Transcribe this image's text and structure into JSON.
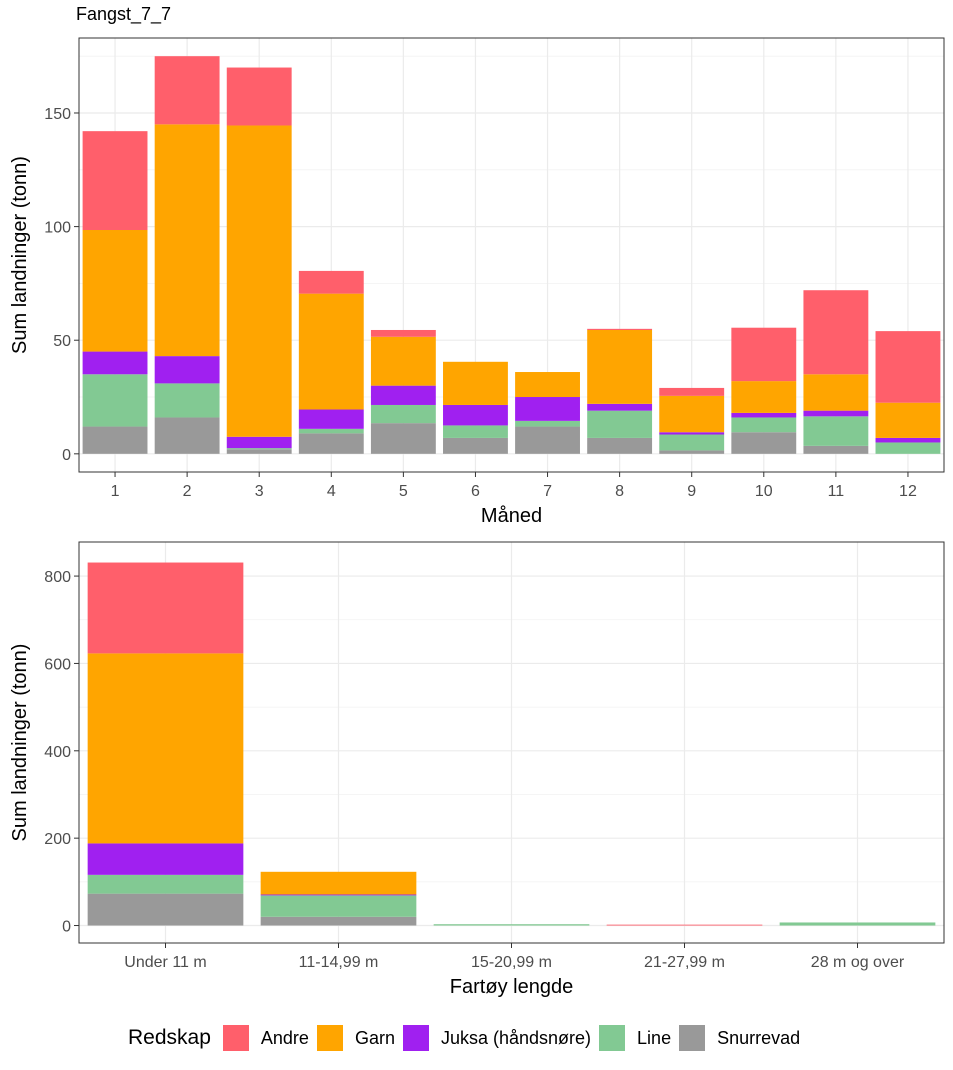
{
  "title": "Fangst_7_7",
  "legend": {
    "title": "Redskap",
    "items": [
      {
        "label": "Andre",
        "color": "#FF5F6B"
      },
      {
        "label": "Garn",
        "color": "#FFA500"
      },
      {
        "label": "Juksa (håndsnøre)",
        "color": "#A020F0"
      },
      {
        "label": "Line",
        "color": "#82C993"
      },
      {
        "label": "Snurrevad",
        "color": "#999999"
      }
    ]
  },
  "chart_data": [
    {
      "type": "bar",
      "stacked": true,
      "xlabel": "Måned",
      "ylabel": "Sum landninger (tonn)",
      "ylim": [
        -8,
        183
      ],
      "yticks": [
        0,
        50,
        100,
        150
      ],
      "grid": true,
      "legend_position": "bottom",
      "categories": [
        "1",
        "2",
        "3",
        "4",
        "5",
        "6",
        "7",
        "8",
        "9",
        "10",
        "11",
        "12"
      ],
      "series": [
        {
          "name": "Snurrevad",
          "color": "#999999",
          "values": [
            12,
            16,
            2,
            9,
            13.5,
            7,
            12,
            7,
            1.5,
            9.5,
            3.5,
            0
          ]
        },
        {
          "name": "Line",
          "color": "#82C993",
          "values": [
            23,
            15,
            0.5,
            2,
            8,
            5.5,
            2.5,
            12,
            7,
            6.5,
            13,
            5
          ]
        },
        {
          "name": "Juksa (håndsnøre)",
          "color": "#A020F0",
          "values": [
            10,
            12,
            5,
            8.5,
            8.5,
            9,
            10.5,
            3,
            1,
            2,
            2.5,
            2
          ]
        },
        {
          "name": "Garn",
          "color": "#FFA500",
          "values": [
            53.5,
            102,
            137,
            51,
            21.5,
            19,
            11,
            32.5,
            16,
            14,
            16,
            15.5
          ]
        },
        {
          "name": "Andre",
          "color": "#FF5F6B",
          "values": [
            43.5,
            30,
            25.5,
            10,
            3,
            0,
            0,
            0.5,
            3.5,
            23.5,
            37,
            31.5
          ]
        }
      ]
    },
    {
      "type": "bar",
      "stacked": true,
      "xlabel": "Fartøy lengde",
      "ylabel": "Sum landninger (tonn)",
      "ylim": [
        -40,
        878
      ],
      "yticks": [
        0,
        200,
        400,
        600,
        800
      ],
      "grid": true,
      "legend_position": "bottom",
      "categories": [
        "Under 11 m",
        "11-14,99 m",
        "15-20,99 m",
        "21-27,99 m",
        "28 m og over"
      ],
      "series": [
        {
          "name": "Snurrevad",
          "color": "#999999",
          "values": [
            73,
            20,
            0,
            0,
            0
          ]
        },
        {
          "name": "Line",
          "color": "#82C993",
          "values": [
            43,
            49,
            3,
            0,
            7
          ]
        },
        {
          "name": "Juksa (håndsnøre)",
          "color": "#A020F0",
          "values": [
            72,
            2,
            0,
            0,
            0
          ]
        },
        {
          "name": "Garn",
          "color": "#FFA500",
          "values": [
            435,
            52,
            0,
            0,
            0
          ]
        },
        {
          "name": "Andre",
          "color": "#FF5F6B",
          "values": [
            208,
            0,
            0,
            2,
            0
          ]
        }
      ]
    }
  ]
}
